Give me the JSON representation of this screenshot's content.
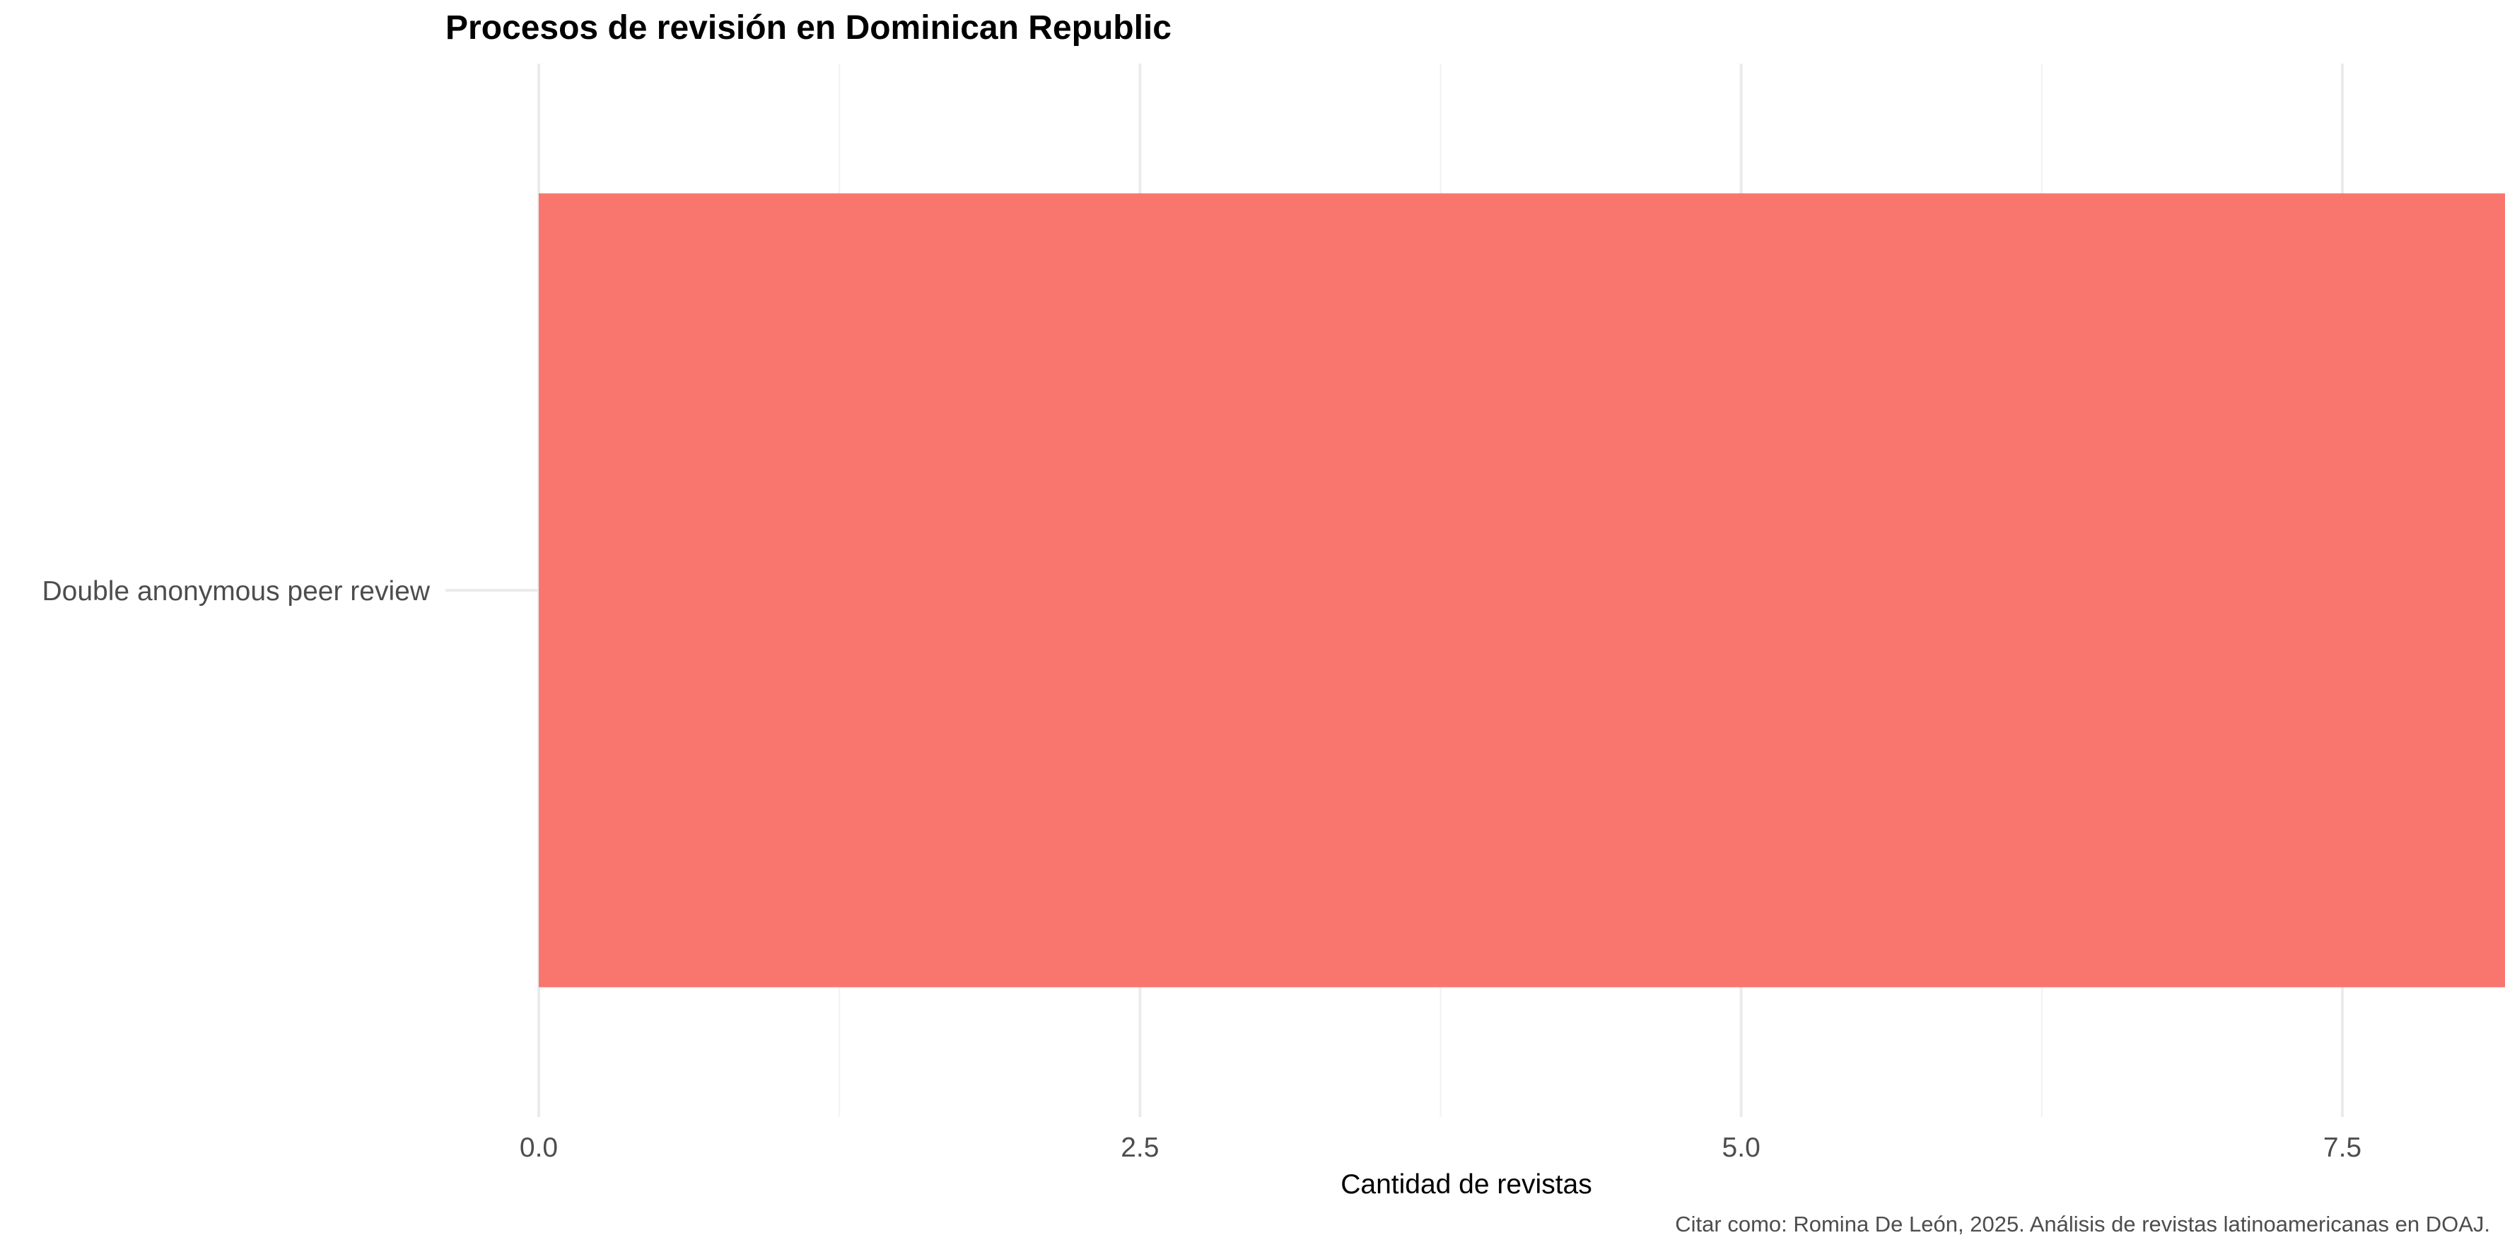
{
  "chart_data": {
    "type": "bar",
    "orientation": "horizontal",
    "title": "Procesos de revisión en Dominican Republic",
    "xlabel": "Cantidad de revistas",
    "ylabel": "",
    "categories": [
      "Double anonymous peer review"
    ],
    "values": [
      9
    ],
    "xlim": [
      0,
      9.5
    ],
    "x_ticks": [
      0.0,
      2.5,
      5.0,
      7.5
    ],
    "x_tick_labels": [
      "0.0",
      "2.5",
      "5.0",
      "7.5"
    ],
    "grid": true,
    "legend": "none",
    "caption": "Citar como: Romina De León, 2025. Análisis de revistas latinoamericanas en DOAJ.",
    "colors": {
      "bar": "#F8766D",
      "grid_major": "#EBEBEB",
      "grid_minor": "#F2F2F2",
      "tick_text": "#4D4D4D",
      "title_text": "#000000"
    }
  }
}
